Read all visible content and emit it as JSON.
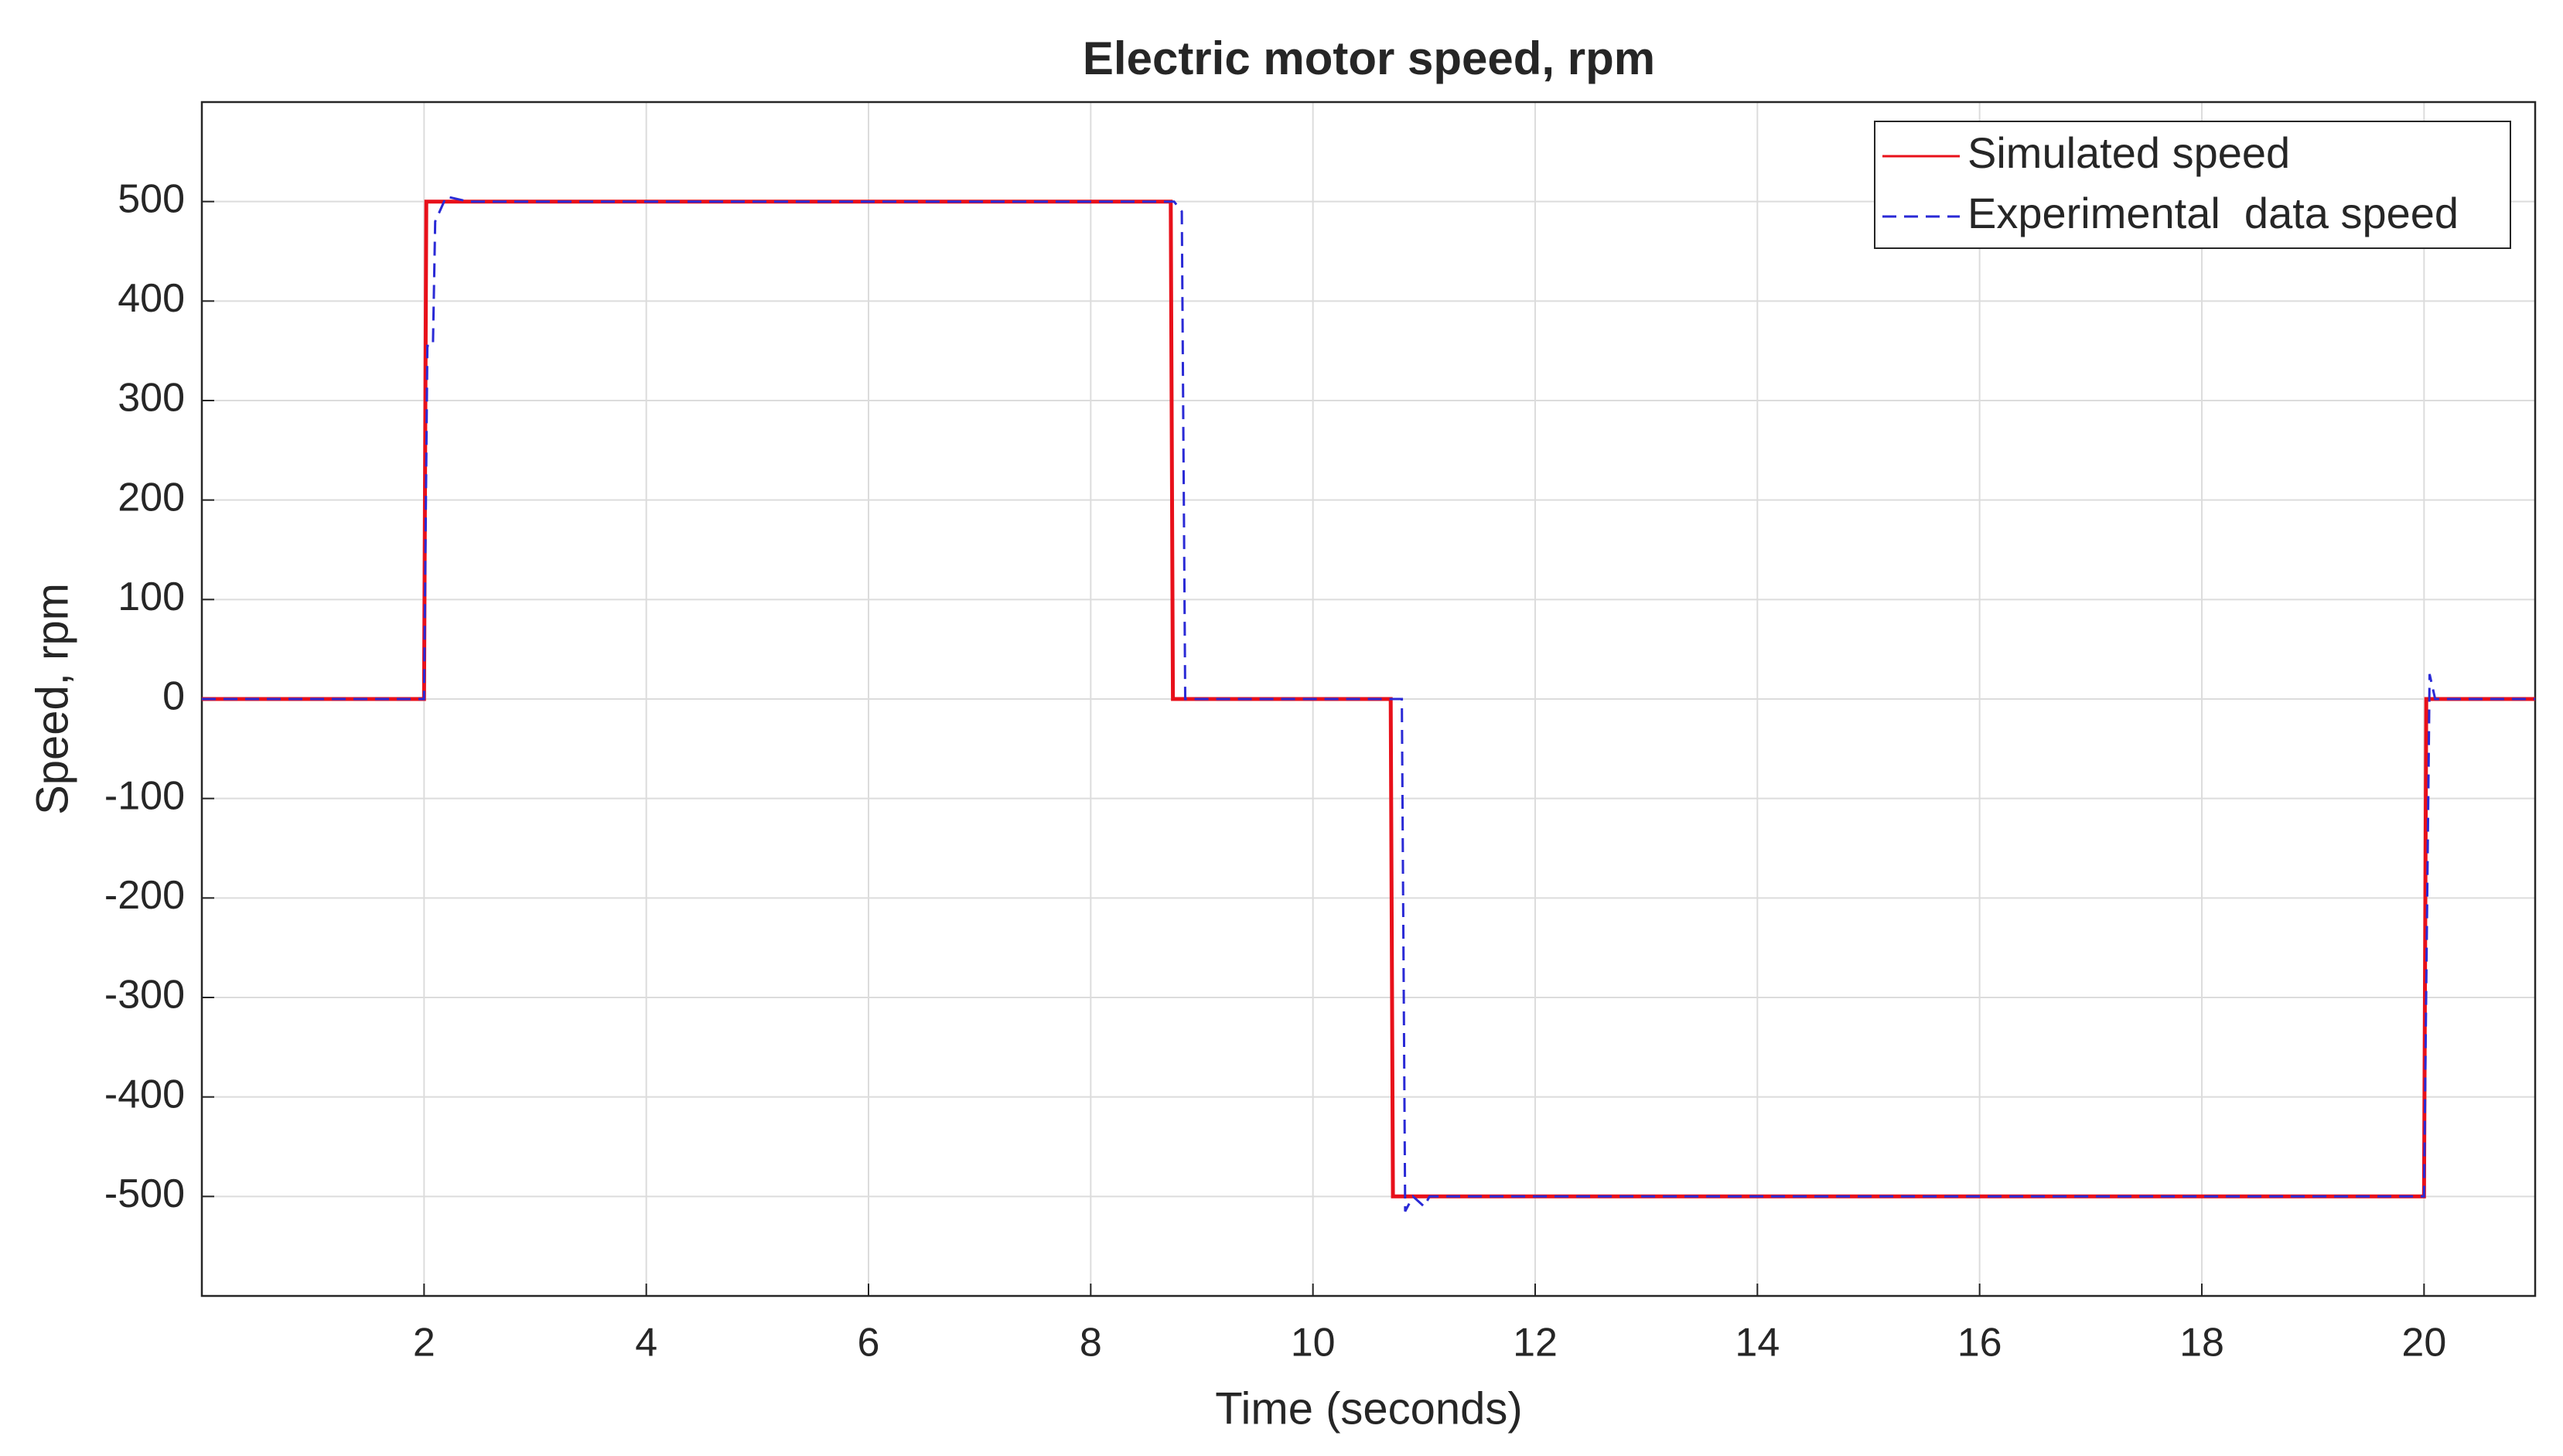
{
  "chart_data": {
    "type": "line",
    "title": "Electric motor speed, rpm",
    "xlabel": "Time (seconds)",
    "ylabel": "Speed, rpm",
    "xlim": [
      0,
      21
    ],
    "ylim": [
      -600,
      600
    ],
    "xticks": [
      2,
      4,
      6,
      8,
      10,
      12,
      14,
      16,
      18,
      20
    ],
    "yticks": [
      -500,
      -400,
      -300,
      -200,
      -100,
      0,
      100,
      200,
      300,
      400,
      500
    ],
    "grid": true,
    "legend": "upper right",
    "series": [
      {
        "name": "Simulated speed",
        "color": "#e8101a",
        "style": "solid",
        "x": [
          0,
          2,
          2.02,
          8.72,
          8.74,
          10.7,
          10.72,
          20,
          20.02,
          21
        ],
        "values": [
          0,
          0,
          500,
          500,
          0,
          0,
          -500,
          -500,
          0,
          0
        ]
      },
      {
        "name": "Experimental  data speed",
        "color": "#2a2ad6",
        "style": "dashed",
        "x": [
          0,
          2,
          2.03,
          2.08,
          2.1,
          2.2,
          2.4,
          8.75,
          8.82,
          8.85,
          10.8,
          10.83,
          10.9,
          11,
          11.05,
          20,
          20.05,
          20.1,
          21
        ],
        "values": [
          0,
          0,
          355,
          355,
          480,
          505,
          500,
          500,
          490,
          0,
          0,
          -515,
          -500,
          -510,
          -500,
          -500,
          25,
          0,
          0
        ]
      }
    ]
  }
}
